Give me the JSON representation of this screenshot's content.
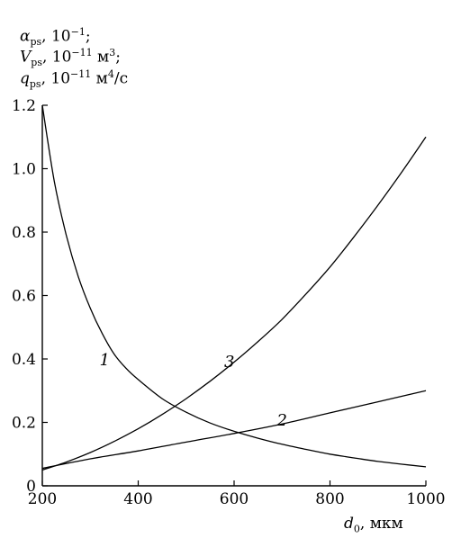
{
  "ylabel_lines": [
    {
      "sym": "α",
      "sub": "ps",
      "unit_pre": ", 10",
      "sup": "−1",
      "unit_post": ";"
    },
    {
      "sym": "V",
      "sub": "ps",
      "unit_pre": ", 10",
      "sup": "−11",
      "unit_post": " м",
      "sup2": "3",
      "unit_post2": ";"
    },
    {
      "sym": "q",
      "sub": "ps",
      "unit_pre": ", 10",
      "sup": "−11",
      "unit_post": " м",
      "sup2": "4",
      "unit_post2": "/с"
    }
  ],
  "xlabel": {
    "sym": "d",
    "sub": "0",
    "unit": ", мкм"
  },
  "chart_data": {
    "type": "line",
    "xlim": [
      200,
      1000
    ],
    "ylim": [
      0,
      1.2
    ],
    "xticks": [
      200,
      400,
      600,
      800,
      1000
    ],
    "yticks": [
      0,
      0.2,
      0.4,
      0.6,
      0.8,
      1.0,
      1.2
    ],
    "ytick_labels": [
      "0",
      "0.2",
      "0.4",
      "0.6",
      "0.8",
      "1.0",
      "1.2"
    ],
    "grid": false,
    "series": [
      {
        "name": "1",
        "label_at": [
          330,
          0.38
        ],
        "x": [
          200,
          225,
          250,
          275,
          300,
          325,
          350,
          375,
          400,
          450,
          500,
          550,
          600,
          650,
          700,
          750,
          800,
          850,
          900,
          950,
          1000
        ],
        "y": [
          1.2,
          0.96,
          0.79,
          0.66,
          0.56,
          0.48,
          0.415,
          0.37,
          0.335,
          0.275,
          0.232,
          0.198,
          0.172,
          0.15,
          0.131,
          0.115,
          0.1,
          0.088,
          0.077,
          0.068,
          0.06
        ]
      },
      {
        "name": "2",
        "label_at": [
          700,
          0.19
        ],
        "x": [
          200,
          300,
          400,
          500,
          600,
          700,
          800,
          900,
          1000
        ],
        "y": [
          0.055,
          0.085,
          0.11,
          0.138,
          0.165,
          0.195,
          0.23,
          0.265,
          0.3
        ]
      },
      {
        "name": "3",
        "label_at": [
          590,
          0.375
        ],
        "x": [
          200,
          250,
          300,
          350,
          400,
          450,
          500,
          550,
          600,
          650,
          700,
          750,
          800,
          850,
          900,
          950,
          1000
        ],
        "y": [
          0.05,
          0.075,
          0.105,
          0.14,
          0.18,
          0.225,
          0.275,
          0.33,
          0.39,
          0.455,
          0.525,
          0.605,
          0.69,
          0.785,
          0.885,
          0.99,
          1.1
        ]
      }
    ]
  }
}
